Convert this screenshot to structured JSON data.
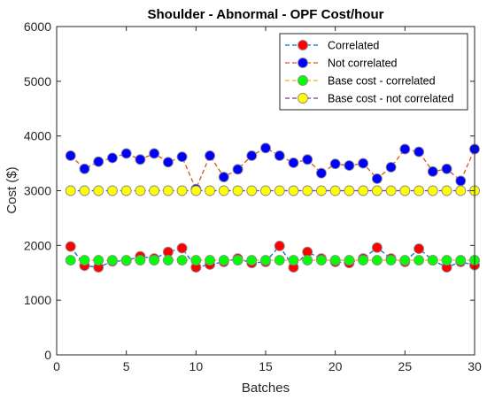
{
  "chart_data": {
    "type": "line",
    "title": "Shoulder - Abnormal - OPF Cost/hour",
    "xlabel": "Batches",
    "ylabel": "Cost ($)",
    "xlim": [
      0,
      30
    ],
    "ylim": [
      0,
      6000
    ],
    "xticks": [
      "0",
      "5",
      "10",
      "15",
      "20",
      "25",
      "30"
    ],
    "yticks": [
      "0",
      "1000",
      "2000",
      "3000",
      "4000",
      "5000",
      "6000"
    ],
    "grid": false,
    "legend_position": "top-right",
    "x": [
      1,
      2,
      3,
      4,
      5,
      6,
      7,
      8,
      9,
      10,
      11,
      12,
      13,
      14,
      15,
      16,
      17,
      18,
      19,
      20,
      21,
      22,
      23,
      24,
      25,
      26,
      27,
      28,
      29,
      30
    ],
    "series": [
      {
        "name": "Correlated",
        "line_color": "#0072bd",
        "marker_color": "#ff0000",
        "values": [
          1980,
          1630,
          1600,
          1710,
          1720,
          1800,
          1760,
          1880,
          1950,
          1600,
          1650,
          1700,
          1760,
          1680,
          1700,
          1990,
          1600,
          1880,
          1760,
          1700,
          1680,
          1760,
          1960,
          1760,
          1700,
          1940,
          1730,
          1600,
          1700,
          1640
        ]
      },
      {
        "name": "Not correlated",
        "line_color": "#d95319",
        "marker_color": "#0000ff",
        "values": [
          3640,
          3400,
          3530,
          3600,
          3680,
          3570,
          3680,
          3520,
          3620,
          3030,
          3640,
          3250,
          3390,
          3640,
          3780,
          3640,
          3510,
          3570,
          3320,
          3490,
          3460,
          3500,
          3220,
          3430,
          3760,
          3710,
          3350,
          3400,
          3180,
          3760
        ]
      },
      {
        "name": "Base cost - correlated",
        "line_color": "#edb120",
        "marker_color": "#00ff00",
        "values": [
          1730,
          1730,
          1730,
          1730,
          1730,
          1730,
          1730,
          1730,
          1730,
          1730,
          1730,
          1730,
          1730,
          1730,
          1730,
          1730,
          1730,
          1730,
          1730,
          1730,
          1730,
          1730,
          1730,
          1730,
          1730,
          1730,
          1730,
          1730,
          1730,
          1730
        ]
      },
      {
        "name": "Base cost - not correlated",
        "line_color": "#7e2f8e",
        "marker_color": "#ffff00",
        "values": [
          3000,
          3000,
          3000,
          3000,
          3000,
          3000,
          3000,
          3000,
          3000,
          3000,
          3000,
          3000,
          3000,
          3000,
          3000,
          3000,
          3000,
          3000,
          3000,
          3000,
          3000,
          3000,
          3000,
          3000,
          3000,
          3000,
          3000,
          3000,
          3000,
          3000
        ]
      }
    ]
  }
}
